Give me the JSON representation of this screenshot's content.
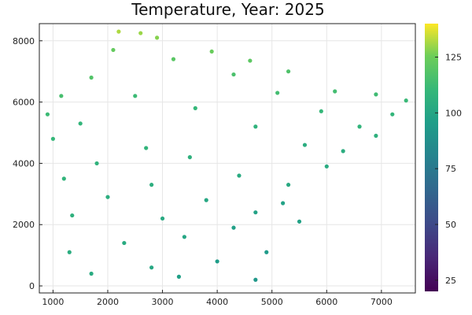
{
  "chart_data": {
    "type": "scatter",
    "title": "Temperature, Year: 2025",
    "xlabel": "",
    "ylabel": "",
    "xlim": [
      750,
      7620
    ],
    "ylim": [
      -230,
      8560
    ],
    "x_ticks": [
      1000,
      2000,
      3000,
      4000,
      5000,
      6000,
      7000
    ],
    "y_ticks": [
      0,
      2000,
      4000,
      6000,
      8000
    ],
    "grid": true,
    "legend": "none",
    "colorbar": {
      "colormap": "viridis",
      "range": [
        20,
        140
      ],
      "ticks": [
        25,
        50,
        75,
        100,
        125
      ],
      "position": "right"
    },
    "point_color_low": "#440154",
    "point_color_high": "#fde725",
    "points": [
      [
        2200,
        8300,
        132
      ],
      [
        2600,
        8250,
        130
      ],
      [
        2900,
        8100,
        128
      ],
      [
        3900,
        7650,
        124
      ],
      [
        4600,
        7350,
        121
      ],
      [
        5300,
        7000,
        117
      ],
      [
        6150,
        6350,
        114
      ],
      [
        6900,
        6250,
        113
      ],
      [
        7450,
        6050,
        111
      ],
      [
        900,
        5600,
        112
      ],
      [
        1150,
        6200,
        115
      ],
      [
        1700,
        6800,
        118
      ],
      [
        2100,
        7700,
        123
      ],
      [
        3200,
        7400,
        120
      ],
      [
        4300,
        6900,
        116
      ],
      [
        5100,
        6300,
        114
      ],
      [
        5900,
        5700,
        110
      ],
      [
        6600,
        5200,
        108
      ],
      [
        7200,
        5600,
        109
      ],
      [
        1000,
        4800,
        110
      ],
      [
        1500,
        5300,
        109
      ],
      [
        2500,
        6200,
        112
      ],
      [
        3600,
        5800,
        110
      ],
      [
        4700,
        5200,
        107
      ],
      [
        5600,
        4600,
        104
      ],
      [
        6300,
        4400,
        104
      ],
      [
        6900,
        4900,
        106
      ],
      [
        1200,
        3500,
        108
      ],
      [
        1800,
        4000,
        107
      ],
      [
        2700,
        4500,
        108
      ],
      [
        3500,
        4200,
        106
      ],
      [
        4400,
        3600,
        103
      ],
      [
        5300,
        3300,
        102
      ],
      [
        6000,
        3900,
        103
      ],
      [
        1350,
        2300,
        106
      ],
      [
        2000,
        2900,
        105
      ],
      [
        2800,
        3300,
        105
      ],
      [
        3800,
        2800,
        101
      ],
      [
        4700,
        2400,
        98
      ],
      [
        5500,
        2100,
        98
      ],
      [
        1300,
        1100,
        104
      ],
      [
        1700,
        400,
        103
      ],
      [
        2300,
        1400,
        103
      ],
      [
        2800,
        600,
        101
      ],
      [
        3400,
        1600,
        100
      ],
      [
        3300,
        300,
        97
      ],
      [
        4000,
        800,
        95
      ],
      [
        4300,
        1900,
        97
      ],
      [
        4700,
        200,
        92
      ],
      [
        4900,
        1100,
        94
      ],
      [
        5200,
        2700,
        98
      ],
      [
        3000,
        2200,
        102
      ]
    ]
  }
}
